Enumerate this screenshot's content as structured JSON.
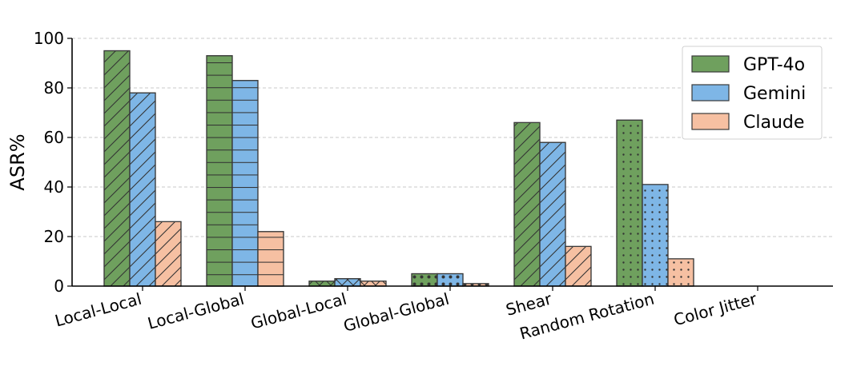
{
  "chart_data": {
    "type": "bar",
    "title": "",
    "xlabel": "",
    "ylabel": "ASR%",
    "ylim": [
      0,
      100
    ],
    "yticks": [
      0,
      20,
      40,
      60,
      80,
      100
    ],
    "grid": "horizontal dashed",
    "legend_position": "top-right",
    "categories": [
      "Local-Local",
      "Local-Global",
      "Global-Local",
      "Global-Global",
      "Shear",
      "Random Rotation",
      "Color Jitter"
    ],
    "category_patterns": [
      "diagonal",
      "horizontal",
      "crosshatch",
      "dots-large",
      "diagonal",
      "dots-small",
      "none"
    ],
    "series": [
      {
        "name": "GPT-4o",
        "color": "#6fa05e",
        "values": [
          95,
          93,
          2,
          5,
          66,
          67,
          0
        ]
      },
      {
        "name": "Gemini",
        "color": "#7eb6e6",
        "values": [
          78,
          83,
          3,
          5,
          58,
          41,
          0
        ]
      },
      {
        "name": "Claude",
        "color": "#f6c0a2",
        "values": [
          26,
          22,
          2,
          1,
          16,
          11,
          0
        ]
      }
    ]
  }
}
